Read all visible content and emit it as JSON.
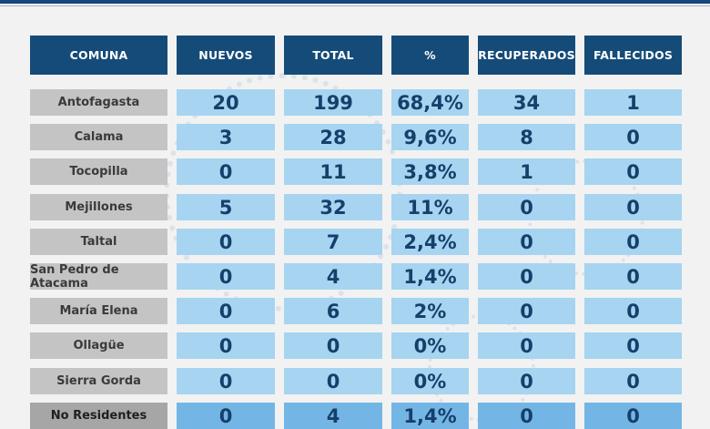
{
  "headers": [
    "COMUNA",
    "NUEVOS",
    "TOTAL",
    "%",
    "RECUPERADOS",
    "FALLECIDOS"
  ],
  "rows": [
    {
      "comuna": "Antofagasta",
      "nuevos": "20",
      "total": "199",
      "pct": "68,4%",
      "recuperados": "34",
      "fallecidos": "1"
    },
    {
      "comuna": "Calama",
      "nuevos": "3",
      "total": "28",
      "pct": "9,6%",
      "recuperados": "8",
      "fallecidos": "0"
    },
    {
      "comuna": "Tocopilla",
      "nuevos": "0",
      "total": "11",
      "pct": "3,8%",
      "recuperados": "1",
      "fallecidos": "0"
    },
    {
      "comuna": "Mejillones",
      "nuevos": "5",
      "total": "32",
      "pct": "11%",
      "recuperados": "0",
      "fallecidos": "0"
    },
    {
      "comuna": "Taltal",
      "nuevos": "0",
      "total": "7",
      "pct": "2,4%",
      "recuperados": "0",
      "fallecidos": "0"
    },
    {
      "comuna": "San Pedro de Atacama",
      "nuevos": "0",
      "total": "4",
      "pct": "1,4%",
      "recuperados": "0",
      "fallecidos": "0"
    },
    {
      "comuna": "María Elena",
      "nuevos": "0",
      "total": "6",
      "pct": "2%",
      "recuperados": "0",
      "fallecidos": "0"
    },
    {
      "comuna": "Ollagüe",
      "nuevos": "0",
      "total": "0",
      "pct": "0%",
      "recuperados": "0",
      "fallecidos": "0"
    },
    {
      "comuna": "Sierra Gorda",
      "nuevos": "0",
      "total": "0",
      "pct": "0%",
      "recuperados": "0",
      "fallecidos": "0"
    },
    {
      "comuna": "No Residentes",
      "nuevos": "0",
      "total": "4",
      "pct": "1,4%",
      "recuperados": "0",
      "fallecidos": "0"
    }
  ],
  "colors": {
    "header_bg": "#154b78",
    "name_bg": "#c4c4c4",
    "value_bg": "#a7d4f0",
    "last_row_value_bg": "#73b6e6",
    "value_text": "#163f6b"
  }
}
